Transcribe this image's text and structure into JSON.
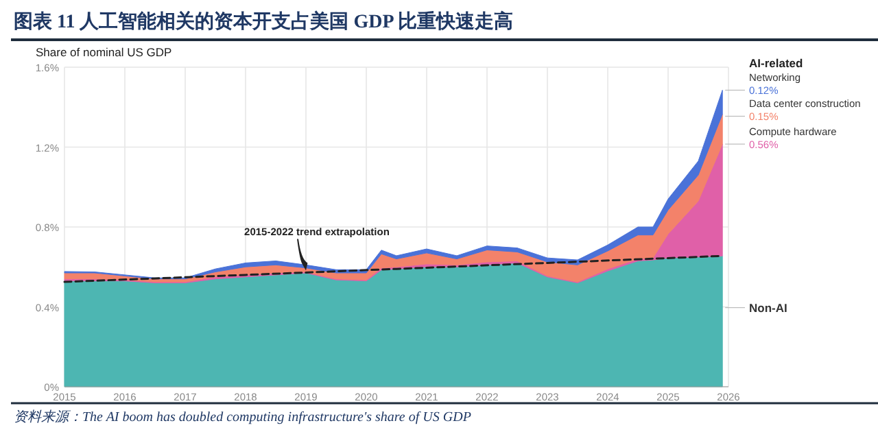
{
  "chart_data": {
    "type": "area",
    "title": "图表 11 人工智能相关的资本开支占美国 GDP 比重快速走高",
    "ylabel": "Share of nominal US GDP",
    "legend_title": "AI-related",
    "stacked": true,
    "grid": true,
    "legend": "right",
    "x": [
      2015,
      2015.5,
      2016,
      2016.5,
      2017,
      2017.5,
      2018,
      2018.5,
      2019,
      2019.5,
      2020,
      2020.25,
      2020.5,
      2021,
      2021.5,
      2022,
      2022.5,
      2023,
      2023.5,
      2024,
      2024.5,
      2024.75,
      2025,
      2025.5,
      2025.9
    ],
    "xlim": [
      2015,
      2026
    ],
    "xticks": [
      2015,
      2016,
      2017,
      2018,
      2019,
      2020,
      2021,
      2022,
      2023,
      2024,
      2025,
      2026
    ],
    "ylim": [
      0,
      1.6
    ],
    "yticks": [
      {
        "value": 0,
        "label": "0%"
      },
      {
        "value": 0.4,
        "label": "0.4%"
      },
      {
        "value": 0.8,
        "label": "0.8%"
      },
      {
        "value": 1.2,
        "label": "1.2%"
      },
      {
        "value": 1.6,
        "label": "1.6%"
      }
    ],
    "series": [
      {
        "name": "Non-AI",
        "color": "#4db6b2",
        "values": [
          0.53,
          0.53,
          0.53,
          0.52,
          0.52,
          0.54,
          0.55,
          0.56,
          0.57,
          0.535,
          0.53,
          0.585,
          0.59,
          0.6,
          0.6,
          0.61,
          0.62,
          0.55,
          0.52,
          0.58,
          0.63,
          0.635,
          0.645,
          0.65,
          0.655
        ]
      },
      {
        "name": "Compute hardware",
        "color": "#e060a8",
        "values": [
          0.01,
          0.01,
          0.005,
          0.005,
          0.005,
          0.01,
          0.01,
          0.01,
          0.005,
          0.005,
          0.005,
          0.01,
          0.01,
          0.015,
          0.01,
          0.015,
          0.01,
          0.005,
          0.005,
          0.01,
          0.01,
          0.01,
          0.12,
          0.28,
          0.56
        ],
        "value_labels": [
          null,
          null,
          null,
          null,
          null,
          null,
          null,
          null,
          null,
          null,
          null,
          null,
          null,
          null,
          null,
          null,
          null,
          null,
          null,
          null,
          null,
          null,
          null,
          null,
          "0.56%"
        ]
      },
      {
        "name": "Data center construction",
        "color": "#f3826a",
        "values": [
          0.03,
          0.03,
          0.02,
          0.015,
          0.015,
          0.025,
          0.04,
          0.04,
          0.02,
          0.03,
          0.035,
          0.07,
          0.04,
          0.055,
          0.03,
          0.06,
          0.045,
          0.07,
          0.085,
          0.09,
          0.12,
          0.115,
          0.12,
          0.13,
          0.15
        ],
        "value_labels": [
          null,
          null,
          null,
          null,
          null,
          null,
          null,
          null,
          null,
          null,
          null,
          null,
          null,
          null,
          null,
          null,
          null,
          null,
          null,
          null,
          null,
          null,
          null,
          null,
          "0.15%"
        ]
      },
      {
        "name": "Networking",
        "color": "#4a72d8",
        "values": [
          0.007,
          0.005,
          0.005,
          0.005,
          0.005,
          0.015,
          0.02,
          0.02,
          0.015,
          0.016,
          0.016,
          0.019,
          0.016,
          0.02,
          0.016,
          0.02,
          0.02,
          0.02,
          0.025,
          0.03,
          0.04,
          0.04,
          0.055,
          0.07,
          0.12
        ],
        "value_labels": [
          null,
          null,
          null,
          null,
          null,
          null,
          null,
          null,
          null,
          null,
          null,
          null,
          null,
          null,
          null,
          null,
          null,
          null,
          null,
          null,
          null,
          null,
          null,
          null,
          "0.12%"
        ]
      },
      {
        "type": "line",
        "color": "#222222",
        "line_style": "dashed",
        "x": [
          2015,
          2018,
          2020.5,
          2023,
          2025.9
        ],
        "values": [
          0.525,
          0.56,
          0.59,
          0.62,
          0.655
        ]
      }
    ],
    "annotations": [
      {
        "text": "2015-2022 trend extrapolation",
        "x": 2019,
        "y": 0.575
      },
      "资料来源：The AI boom has doubled computing infrastructure's share of US GDP"
    ]
  }
}
